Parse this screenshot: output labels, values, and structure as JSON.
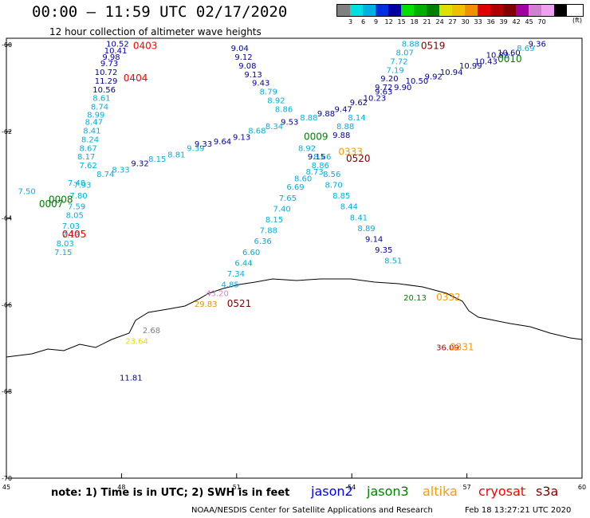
{
  "header": {
    "title": "00:00 – 11:59 UTC 02/17/2020",
    "subtitle": "12 hour collection of altimeter wave heights"
  },
  "legend": {
    "colors": [
      "#808080",
      "#00e0e0",
      "#00b0e0",
      "#0030e0",
      "#0000a0",
      "#00e000",
      "#00b000",
      "#008000",
      "#e0e000",
      "#f0c000",
      "#f09000",
      "#e00000",
      "#b00000",
      "#800000",
      "#a000a0",
      "#d080d0",
      "#f0a0f0",
      "#000000"
    ],
    "labels": [
      "3",
      "6",
      "9",
      "12",
      "15",
      "18",
      "21",
      "24",
      "27",
      "30",
      "33",
      "36",
      "39",
      "42",
      "45",
      "70"
    ],
    "unit": "(ft)"
  },
  "axes": {
    "lon_labels": [
      "45",
      "48",
      "51",
      "54",
      "57",
      "60"
    ],
    "lat_labels": [
      "-60",
      "-62",
      "-64",
      "-66",
      "-68",
      "-70"
    ]
  },
  "satellites": {
    "jason2": {
      "name": "jason2",
      "color": "#0000ff"
    },
    "jason3": {
      "name": "jason3",
      "color": "#008000"
    },
    "altika": {
      "name": "altika",
      "color": "#ff9900"
    },
    "cryosat": {
      "name": "cryosat",
      "color": "#ff0000"
    },
    "s3a": {
      "name": "s3a",
      "color": "#800000"
    }
  },
  "footer": {
    "note": "note: 1) Time is in UTC; 2) SWH is in feet",
    "credit": "NOAA/NESDIS Center for Satellite Applications and Research",
    "timestamp": "Feb 18 13:27:21 UTC 2020"
  },
  "time_labels": [
    {
      "text": "0403",
      "lon": 48.3,
      "lat": -60.1,
      "color": "#ff0000"
    },
    {
      "text": "0404",
      "lon": 48.05,
      "lat": -60.85,
      "color": "#ff0000"
    },
    {
      "text": "0405",
      "lon": 46.45,
      "lat": -64.45,
      "color": "#ff0000"
    },
    {
      "text": "0007",
      "lon": 45.85,
      "lat": -63.75,
      "color": "#008000"
    },
    {
      "text": "0008",
      "lon": 46.1,
      "lat": -63.65,
      "color": "#008000"
    },
    {
      "text": "0009",
      "lon": 52.75,
      "lat": -62.2,
      "color": "#008000"
    },
    {
      "text": "0010",
      "lon": 57.8,
      "lat": -60.4,
      "color": "#008000"
    },
    {
      "text": "0519",
      "lon": 55.8,
      "lat": -60.1,
      "color": "#800000"
    },
    {
      "text": "0520",
      "lon": 53.85,
      "lat": -62.7,
      "color": "#800000"
    },
    {
      "text": "0521",
      "lon": 50.75,
      "lat": -66.05,
      "color": "#800000"
    },
    {
      "text": "0333",
      "lon": 53.65,
      "lat": -62.55,
      "color": "#ff9900"
    },
    {
      "text": "0332",
      "lon": 56.2,
      "lat": -65.9,
      "color": "#ff9900"
    },
    {
      "text": "0331",
      "lon": 56.55,
      "lat": -67.05,
      "color": "#ff9900"
    }
  ],
  "swh_readings": [
    {
      "text": "10.52",
      "lon": 47.6,
      "lat": -60.05,
      "color": "#0000a0"
    },
    {
      "text": "10.41",
      "lon": 47.55,
      "lat": -60.2,
      "color": "#0000a0"
    },
    {
      "text": "9.98",
      "lon": 47.5,
      "lat": -60.35,
      "color": "#0000a0"
    },
    {
      "text": "9.73",
      "lon": 47.45,
      "lat": -60.5,
      "color": "#0000a0"
    },
    {
      "text": "10.72",
      "lon": 47.3,
      "lat": -60.7,
      "color": "#0000a0"
    },
    {
      "text": "11.29",
      "lon": 47.3,
      "lat": -60.9,
      "color": "#0000a0"
    },
    {
      "text": "10.56",
      "lon": 47.25,
      "lat": -61.1,
      "color": "#0000a0"
    },
    {
      "text": "8.61",
      "lon": 47.25,
      "lat": -61.3,
      "color": "#00b0e0"
    },
    {
      "text": "8.74",
      "lon": 47.2,
      "lat": -61.5,
      "color": "#00b0e0"
    },
    {
      "text": "8.99",
      "lon": 47.1,
      "lat": -61.68,
      "color": "#00b0e0"
    },
    {
      "text": "8.47",
      "lon": 47.05,
      "lat": -61.85,
      "color": "#00b0e0"
    },
    {
      "text": "8.41",
      "lon": 47.0,
      "lat": -62.05,
      "color": "#00b0e0"
    },
    {
      "text": "8.24",
      "lon": 46.95,
      "lat": -62.25,
      "color": "#00b0e0"
    },
    {
      "text": "8.67",
      "lon": 46.9,
      "lat": -62.45,
      "color": "#00b0e0"
    },
    {
      "text": "8.17",
      "lon": 46.85,
      "lat": -62.65,
      "color": "#00b0e0"
    },
    {
      "text": "7.62",
      "lon": 46.9,
      "lat": -62.85,
      "color": "#00b0e0"
    },
    {
      "text": "7.93",
      "lon": 46.75,
      "lat": -63.3,
      "color": "#00b0e0"
    },
    {
      "text": "7.80",
      "lon": 46.65,
      "lat": -63.55,
      "color": "#00b0e0"
    },
    {
      "text": "7.59",
      "lon": 46.6,
      "lat": -63.8,
      "color": "#00b0e0"
    },
    {
      "text": "8.05",
      "lon": 46.55,
      "lat": -64.0,
      "color": "#00b0e0"
    },
    {
      "text": "7.03",
      "lon": 46.45,
      "lat": -64.25,
      "color": "#00b0e0"
    },
    {
      "text": "7.13",
      "lon": 46.45,
      "lat": -64.45,
      "color": "#00b0e0"
    },
    {
      "text": "8.03",
      "lon": 46.3,
      "lat": -64.65,
      "color": "#00b0e0"
    },
    {
      "text": "7.15",
      "lon": 46.25,
      "lat": -64.85,
      "color": "#00b0e0"
    },
    {
      "text": "7.50",
      "lon": 45.3,
      "lat": -63.45,
      "color": "#00b0e0"
    },
    {
      "text": "7.48",
      "lon": 46.6,
      "lat": -63.25,
      "color": "#00b0e0"
    },
    {
      "text": "8.74",
      "lon": 47.35,
      "lat": -63.05,
      "color": "#00b0e0"
    },
    {
      "text": "8.33",
      "lon": 47.75,
      "lat": -62.95,
      "color": "#00b0e0"
    },
    {
      "text": "9.32",
      "lon": 48.25,
      "lat": -62.8,
      "color": "#0000a0"
    },
    {
      "text": "8.15",
      "lon": 48.7,
      "lat": -62.7,
      "color": "#00b0e0"
    },
    {
      "text": "8.81",
      "lon": 49.2,
      "lat": -62.6,
      "color": "#00b0e0"
    },
    {
      "text": "9.39",
      "lon": 49.7,
      "lat": -62.45,
      "color": "#00b0e0"
    },
    {
      "text": "9.33",
      "lon": 49.9,
      "lat": -62.35,
      "color": "#0000a0"
    },
    {
      "text": "9.64",
      "lon": 50.4,
      "lat": -62.3,
      "color": "#0000a0"
    },
    {
      "text": "9.13",
      "lon": 50.9,
      "lat": -62.2,
      "color": "#0000a0"
    },
    {
      "text": "8.68",
      "lon": 51.3,
      "lat": -62.05,
      "color": "#00b0e0"
    },
    {
      "text": "8.34",
      "lon": 51.75,
      "lat": -61.95,
      "color": "#00b0e0"
    },
    {
      "text": "9.53",
      "lon": 52.15,
      "lat": -61.85,
      "color": "#0000a0"
    },
    {
      "text": "8.88",
      "lon": 52.65,
      "lat": -61.75,
      "color": "#00b0e0"
    },
    {
      "text": "9.88",
      "lon": 53.1,
      "lat": -61.65,
      "color": "#0000a0"
    },
    {
      "text": "9.47",
      "lon": 53.55,
      "lat": -61.55,
      "color": "#0000a0"
    },
    {
      "text": "9.62",
      "lon": 53.95,
      "lat": -61.4,
      "color": "#0000a0"
    },
    {
      "text": "10.23",
      "lon": 54.3,
      "lat": -61.3,
      "color": "#0000a0"
    },
    {
      "text": "9.63",
      "lon": 54.6,
      "lat": -61.15,
      "color": "#0000a0"
    },
    {
      "text": "9.90",
      "lon": 55.1,
      "lat": -61.05,
      "color": "#0000a0"
    },
    {
      "text": "10.50",
      "lon": 55.4,
      "lat": -60.9,
      "color": "#0000a0"
    },
    {
      "text": "9.92",
      "lon": 55.9,
      "lat": -60.8,
      "color": "#0000a0"
    },
    {
      "text": "10.94",
      "lon": 56.3,
      "lat": -60.7,
      "color": "#0000a0"
    },
    {
      "text": "10.99",
      "lon": 56.8,
      "lat": -60.55,
      "color": "#0000a0"
    },
    {
      "text": "10.43",
      "lon": 57.2,
      "lat": -60.45,
      "color": "#0000a0"
    },
    {
      "text": "10.82",
      "lon": 57.5,
      "lat": -60.3,
      "color": "#0000a0"
    },
    {
      "text": "10.60",
      "lon": 57.8,
      "lat": -60.25,
      "color": "#0000a0"
    },
    {
      "text": "8.69",
      "lon": 58.3,
      "lat": -60.15,
      "color": "#00b0e0"
    },
    {
      "text": "9.36",
      "lon": 58.6,
      "lat": -60.05,
      "color": "#0000a0"
    },
    {
      "text": "8.88",
      "lon": 55.3,
      "lat": -60.05,
      "color": "#00b0e0"
    },
    {
      "text": "8.07",
      "lon": 55.15,
      "lat": -60.25,
      "color": "#00b0e0"
    },
    {
      "text": "7.72",
      "lon": 55.0,
      "lat": -60.45,
      "color": "#00b0e0"
    },
    {
      "text": "7.19",
      "lon": 54.9,
      "lat": -60.65,
      "color": "#00b0e0"
    },
    {
      "text": "9.20",
      "lon": 54.75,
      "lat": -60.85,
      "color": "#0000a0"
    },
    {
      "text": "9.72",
      "lon": 54.6,
      "lat": -61.05,
      "color": "#0000a0"
    },
    {
      "text": "8.14",
      "lon": 53.9,
      "lat": -61.75,
      "color": "#00b0e0"
    },
    {
      "text": "8.88",
      "lon": 53.6,
      "lat": -61.95,
      "color": "#00b0e0"
    },
    {
      "text": "9.88",
      "lon": 53.5,
      "lat": -62.15,
      "color": "#0000a0"
    },
    {
      "text": "8.92",
      "lon": 52.6,
      "lat": -62.45,
      "color": "#00b0e0"
    },
    {
      "text": "9.15",
      "lon": 52.85,
      "lat": -62.65,
      "color": "#0000a0"
    },
    {
      "text": "8.66",
      "lon": 53.0,
      "lat": -62.65,
      "color": "#00b0e0"
    },
    {
      "text": "8.86",
      "lon": 52.95,
      "lat": -62.85,
      "color": "#00b0e0"
    },
    {
      "text": "8.73",
      "lon": 52.8,
      "lat": -63.0,
      "color": "#00b0e0"
    },
    {
      "text": "8.56",
      "lon": 53.25,
      "lat": -63.05,
      "color": "#00b0e0"
    },
    {
      "text": "8.60",
      "lon": 52.5,
      "lat": -63.15,
      "color": "#00b0e0"
    },
    {
      "text": "8.70",
      "lon": 53.3,
      "lat": -63.3,
      "color": "#00b0e0"
    },
    {
      "text": "6.69",
      "lon": 52.3,
      "lat": -63.35,
      "color": "#00b0e0"
    },
    {
      "text": "8.85",
      "lon": 53.5,
      "lat": -63.55,
      "color": "#00b0e0"
    },
    {
      "text": "7.65",
      "lon": 52.1,
      "lat": -63.6,
      "color": "#00b0e0"
    },
    {
      "text": "8.44",
      "lon": 53.7,
      "lat": -63.8,
      "color": "#00b0e0"
    },
    {
      "text": "7.40",
      "lon": 51.95,
      "lat": -63.85,
      "color": "#00b0e0"
    },
    {
      "text": "8.41",
      "lon": 53.95,
      "lat": -64.05,
      "color": "#00b0e0"
    },
    {
      "text": "8.15",
      "lon": 51.75,
      "lat": -64.1,
      "color": "#00b0e0"
    },
    {
      "text": "8.89",
      "lon": 54.15,
      "lat": -64.3,
      "color": "#00b0e0"
    },
    {
      "text": "7.88",
      "lon": 51.6,
      "lat": -64.35,
      "color": "#00b0e0"
    },
    {
      "text": "9.14",
      "lon": 54.35,
      "lat": -64.55,
      "color": "#0000a0"
    },
    {
      "text": "6.36",
      "lon": 51.45,
      "lat": -64.6,
      "color": "#00b0e0"
    },
    {
      "text": "9.35",
      "lon": 54.6,
      "lat": -64.8,
      "color": "#0000a0"
    },
    {
      "text": "6.60",
      "lon": 51.15,
      "lat": -64.85,
      "color": "#00b0e0"
    },
    {
      "text": "8.51",
      "lon": 54.85,
      "lat": -65.05,
      "color": "#00b0e0"
    },
    {
      "text": "6.44",
      "lon": 50.95,
      "lat": -65.1,
      "color": "#00b0e0"
    },
    {
      "text": "7.34",
      "lon": 50.75,
      "lat": -65.35,
      "color": "#00b0e0"
    },
    {
      "text": "4.85",
      "lon": 50.6,
      "lat": -65.6,
      "color": "#00b0e0"
    },
    {
      "text": "9.04",
      "lon": 50.85,
      "lat": -60.15,
      "color": "#0000a0"
    },
    {
      "text": "9.12",
      "lon": 50.95,
      "lat": -60.35,
      "color": "#0000a0"
    },
    {
      "text": "9.08",
      "lon": 51.05,
      "lat": -60.55,
      "color": "#0000a0"
    },
    {
      "text": "9.13",
      "lon": 51.2,
      "lat": -60.75,
      "color": "#0000a0"
    },
    {
      "text": "9.43",
      "lon": 51.4,
      "lat": -60.95,
      "color": "#0000a0"
    },
    {
      "text": "8.79",
      "lon": 51.6,
      "lat": -61.15,
      "color": "#00b0e0"
    },
    {
      "text": "8.92",
      "lon": 51.8,
      "lat": -61.35,
      "color": "#00b0e0"
    },
    {
      "text": "8.86",
      "lon": 52.0,
      "lat": -61.55,
      "color": "#00b0e0"
    },
    {
      "text": "43.20",
      "lon": 50.2,
      "lat": -65.8,
      "color": "#d080d0"
    },
    {
      "text": "29.83",
      "lon": 49.9,
      "lat": -66.05,
      "color": "#f09000"
    },
    {
      "text": "2.68",
      "lon": 48.55,
      "lat": -66.65,
      "color": "#808080"
    },
    {
      "text": "23.64",
      "lon": 48.1,
      "lat": -66.9,
      "color": "#e0e000"
    },
    {
      "text": "11.81",
      "lon": 47.95,
      "lat": -67.75,
      "color": "#0000a0"
    },
    {
      "text": "20.13",
      "lon": 55.35,
      "lat": -65.9,
      "color": "#008000"
    },
    {
      "text": "36.09",
      "lon": 56.2,
      "lat": -67.05,
      "color": "#b00000"
    }
  ]
}
